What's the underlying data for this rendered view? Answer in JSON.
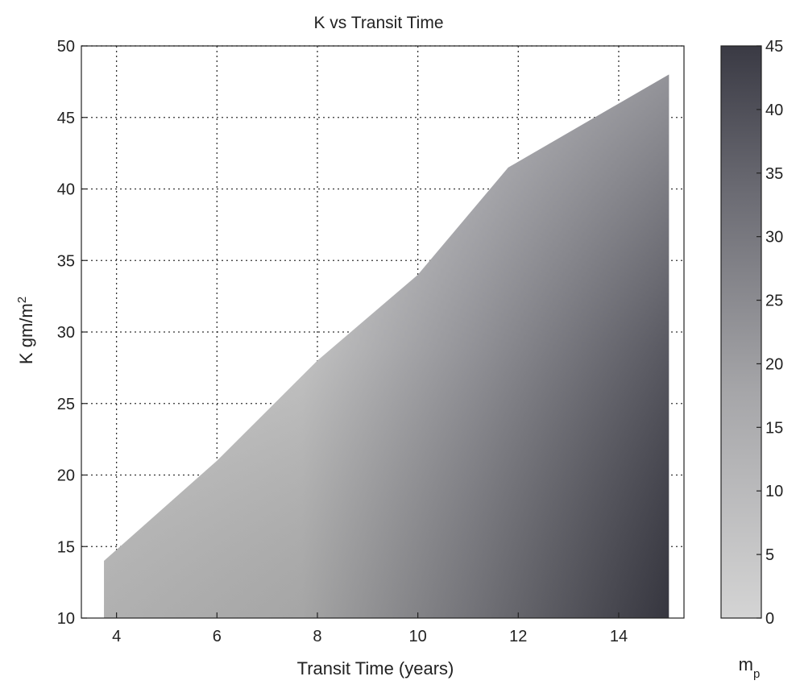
{
  "chart_data": {
    "type": "heatmap",
    "title": "K vs Transit Time",
    "xlabel": "Transit Time (years)",
    "ylabel_main": "K gm/m",
    "ylabel_sup": "2",
    "xlim": [
      3.3,
      15.3
    ],
    "ylim": [
      10,
      50
    ],
    "xticks": [
      4,
      6,
      8,
      10,
      12,
      14
    ],
    "yticks": [
      10,
      15,
      20,
      25,
      30,
      35,
      40,
      45,
      50
    ],
    "grid": true,
    "region_boundary": {
      "x": [
        3.75,
        6,
        8,
        10,
        11.8,
        15
      ],
      "y": [
        14,
        21,
        28,
        34,
        41.5,
        48
      ]
    },
    "colorbar": {
      "label_main": "m",
      "label_sub": "p",
      "min": 0,
      "max": 45,
      "ticks": [
        0,
        5,
        10,
        15,
        20,
        25,
        30,
        35,
        40,
        45
      ],
      "color_low": "#d2d2d2",
      "color_high": "#3a3a44"
    },
    "colors": {
      "fill_light": "#c6c6c6",
      "fill_dark": "#3a3a44",
      "grid": "#333333",
      "axis": "#222222"
    }
  }
}
